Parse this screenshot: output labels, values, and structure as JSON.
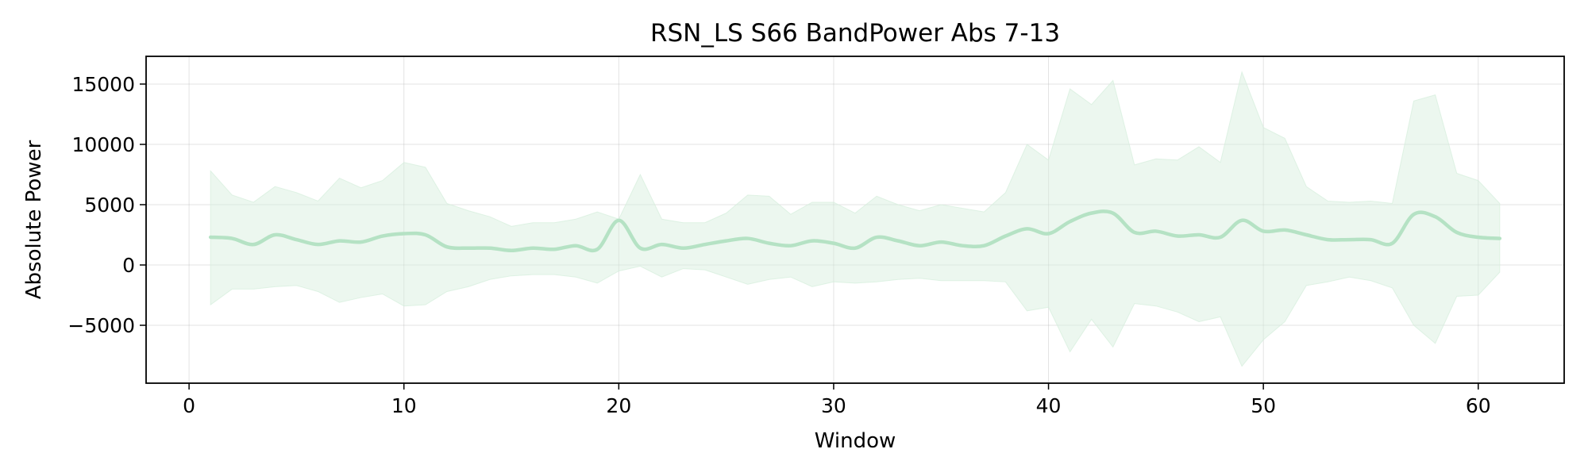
{
  "chart_data": {
    "type": "line",
    "title": "RSN_LS S66 BandPower Abs 7-13",
    "xlabel": "Window",
    "ylabel": "Absolute Power",
    "xlim": [
      -2,
      64
    ],
    "ylim": [
      -9800,
      17300
    ],
    "x_ticks": [
      0,
      10,
      20,
      30,
      40,
      50,
      60
    ],
    "y_ticks": [
      -5000,
      0,
      5000,
      10000,
      15000
    ],
    "y_tick_labels": [
      "−5000",
      "0",
      "5000",
      "10000",
      "15000"
    ],
    "grid": true,
    "legend": "none",
    "series": [
      {
        "color": "#b5e2c4",
        "band_color": "#d4eedb",
        "x": [
          1,
          2,
          3,
          4,
          5,
          6,
          7,
          8,
          9,
          10,
          11,
          12,
          13,
          14,
          15,
          16,
          17,
          18,
          19,
          20,
          21,
          22,
          23,
          24,
          25,
          26,
          27,
          28,
          29,
          30,
          31,
          32,
          33,
          34,
          35,
          36,
          37,
          38,
          39,
          40,
          41,
          42,
          43,
          44,
          45,
          46,
          47,
          48,
          49,
          50,
          51,
          52,
          53,
          54,
          55,
          56,
          57,
          58,
          59,
          60,
          61
        ],
        "mean": [
          2300,
          2200,
          1700,
          2500,
          2100,
          1700,
          2000,
          1900,
          2400,
          2600,
          2500,
          1500,
          1400,
          1400,
          1200,
          1400,
          1300,
          1600,
          1300,
          3700,
          1400,
          1700,
          1400,
          1700,
          2000,
          2200,
          1800,
          1600,
          2000,
          1800,
          1400,
          2300,
          2000,
          1600,
          1900,
          1600,
          1600,
          2400,
          3000,
          2600,
          3600,
          4300,
          4300,
          2700,
          2800,
          2400,
          2500,
          2300,
          3700,
          2800,
          2900,
          2500,
          2100,
          2100,
          2100,
          1800,
          4200,
          4000,
          2700,
          2300,
          2200
        ],
        "upper": [
          7800,
          5800,
          5200,
          6500,
          6000,
          5300,
          7200,
          6400,
          7000,
          8500,
          8100,
          5100,
          4500,
          4000,
          3200,
          3500,
          3500,
          3800,
          4400,
          3800,
          7500,
          3800,
          3500,
          3500,
          4300,
          5800,
          5700,
          4200,
          5200,
          5200,
          4300,
          5700,
          5000,
          4500,
          5000,
          4700,
          4400,
          6000,
          10000,
          8700,
          14600,
          13300,
          15300,
          8300,
          8800,
          8700,
          9800,
          8500,
          16000,
          11400,
          10500,
          6500,
          5300,
          5200,
          5300,
          5100,
          13600,
          14100,
          7600,
          7000,
          5100
        ],
        "lower": [
          -3300,
          -2000,
          -2000,
          -1800,
          -1700,
          -2200,
          -3100,
          -2700,
          -2400,
          -3400,
          -3300,
          -2200,
          -1800,
          -1200,
          -900,
          -800,
          -800,
          -1000,
          -1500,
          -500,
          -100,
          -1000,
          -300,
          -400,
          -1000,
          -1600,
          -1200,
          -1000,
          -1800,
          -1400,
          -1500,
          -1400,
          -1200,
          -1100,
          -1300,
          -1300,
          -1300,
          -1400,
          -3800,
          -3500,
          -7200,
          -4500,
          -6800,
          -3200,
          -3400,
          -3900,
          -4700,
          -4300,
          -8400,
          -6200,
          -4700,
          -1700,
          -1400,
          -1000,
          -1300,
          -1900,
          -5000,
          -6500,
          -2600,
          -2500,
          -600
        ]
      }
    ]
  }
}
